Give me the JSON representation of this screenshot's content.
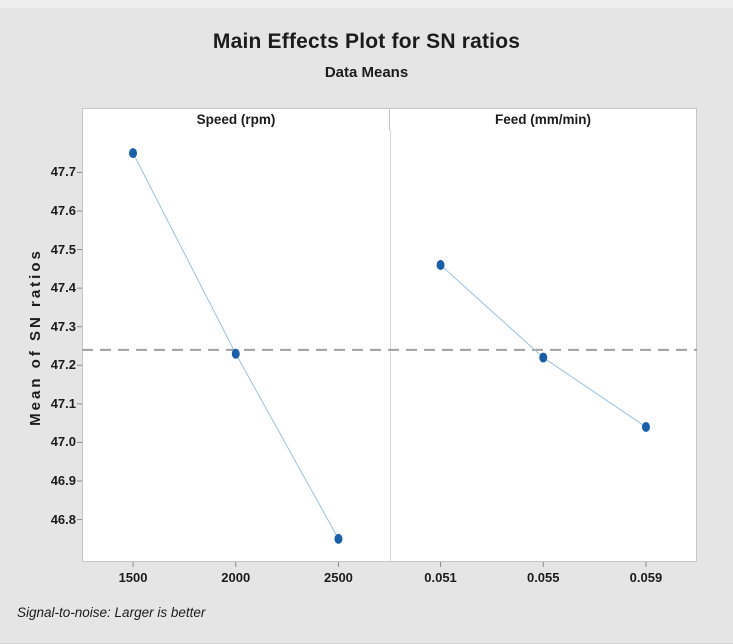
{
  "figure": {
    "title": "Main Effects Plot for SN ratios",
    "subtitle": "Data Means",
    "footnote": "Signal-to-noise: Larger is better"
  },
  "chart_data": {
    "type": "line",
    "title": "Main Effects Plot for SN ratios",
    "subtitle": "Data Means",
    "ylabel": "Mean of SN ratios",
    "yticks": [
      "47.7",
      "47.6",
      "47.5",
      "47.4",
      "47.3",
      "47.2",
      "47.1",
      "47.0",
      "46.9",
      "46.8"
    ],
    "ylim": [
      46.69,
      47.81
    ],
    "reference_line": 47.24,
    "grid": "off",
    "legend": "none",
    "footnote": "Signal-to-noise: Larger is better",
    "panels": [
      {
        "title": "Speed (rpm)",
        "categories": [
          "1500",
          "2000",
          "2500"
        ],
        "values": [
          47.75,
          47.23,
          46.75
        ]
      },
      {
        "title": "Feed (mm/min)",
        "categories": [
          "0.051",
          "0.055",
          "0.059"
        ],
        "values": [
          47.46,
          47.22,
          47.04
        ]
      }
    ],
    "colors": {
      "marker": "#1a5fa8",
      "connector": "#9cc2e0",
      "reference": "#a1a1a1",
      "tick": "#8c8c8c",
      "background": "#e5e5e5",
      "panel_background": "#ffffff",
      "border": "#c6c6c6"
    }
  }
}
